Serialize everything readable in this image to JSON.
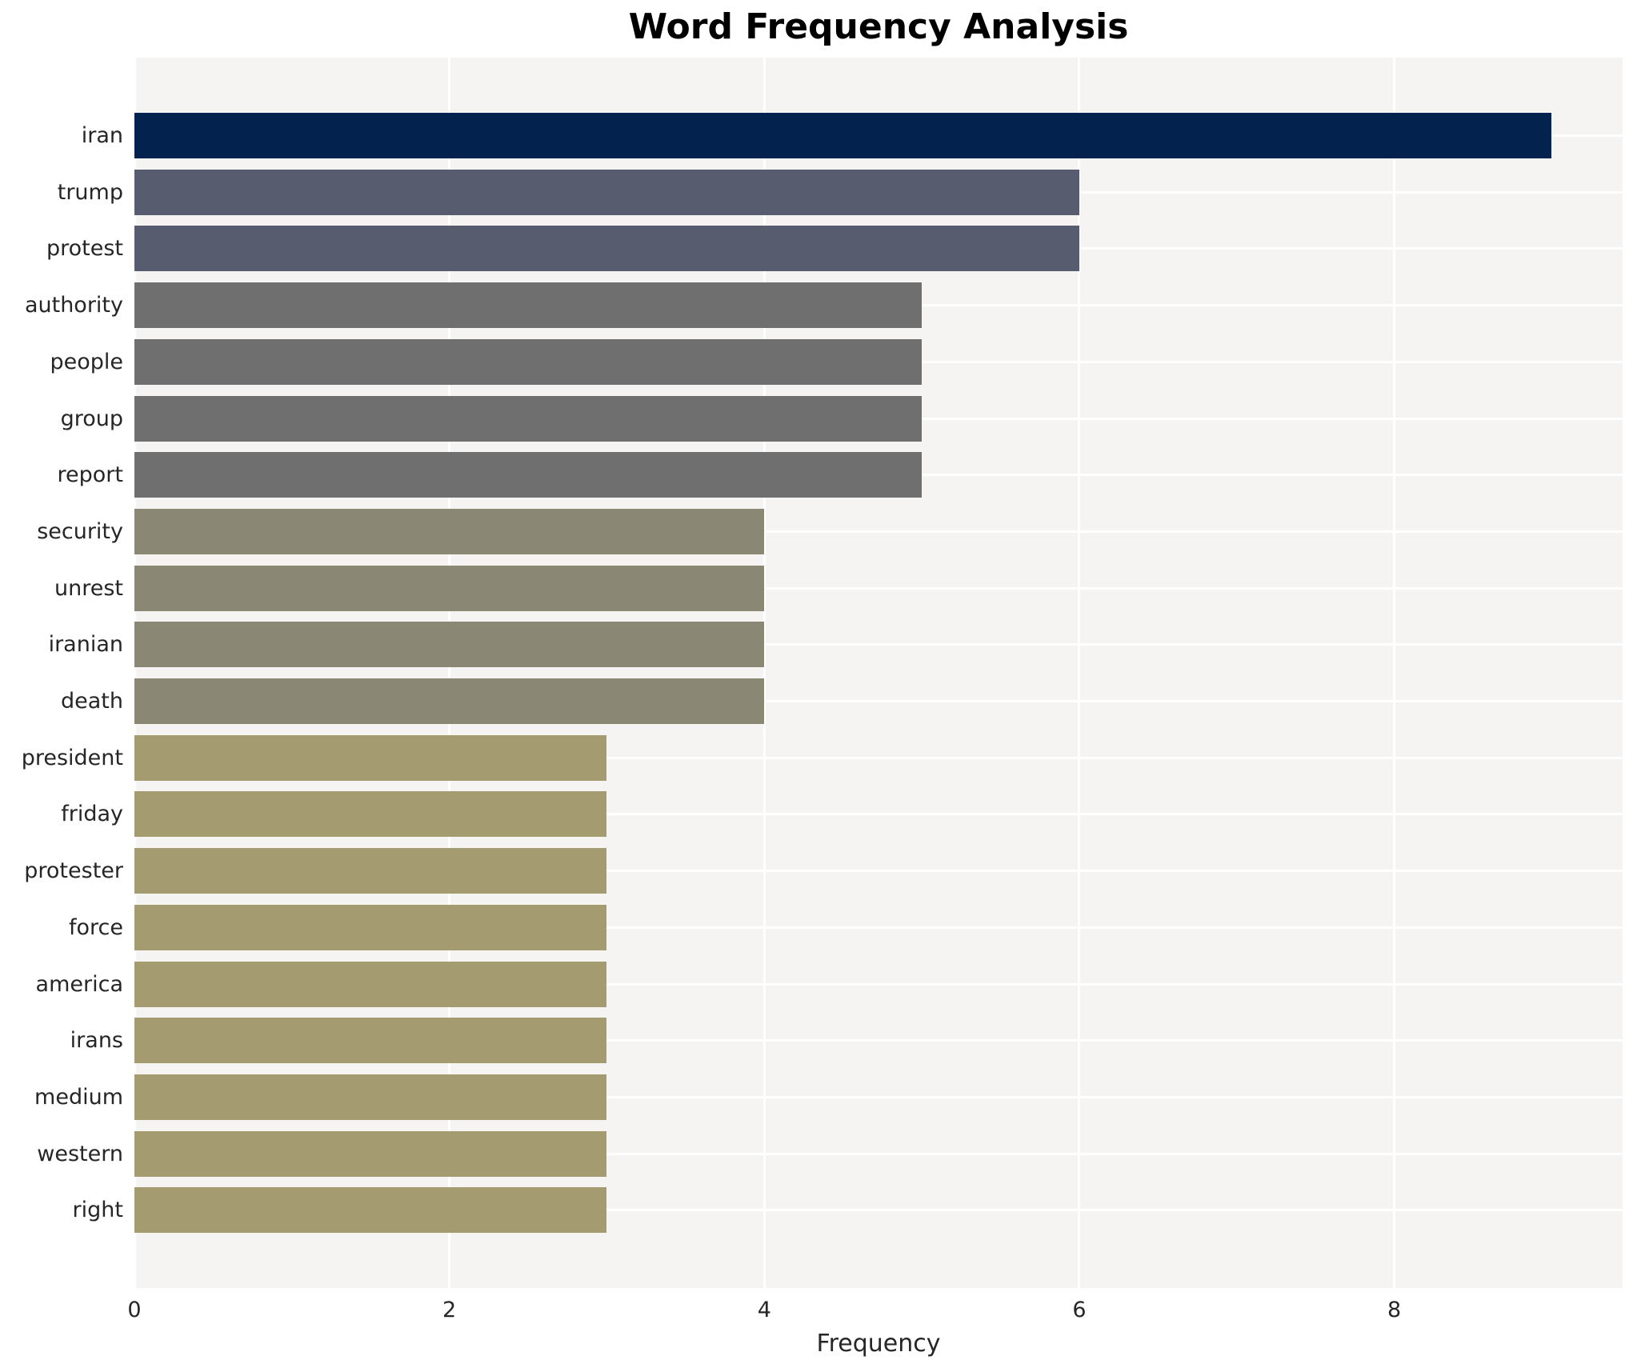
{
  "chart_data": {
    "type": "bar",
    "orientation": "horizontal",
    "title": "Word Frequency Analysis",
    "xlabel": "Frequency",
    "ylabel": "",
    "categories": [
      "iran",
      "trump",
      "protest",
      "authority",
      "people",
      "group",
      "report",
      "security",
      "unrest",
      "iranian",
      "death",
      "president",
      "friday",
      "protester",
      "force",
      "america",
      "irans",
      "medium",
      "western",
      "right"
    ],
    "values": [
      9,
      6,
      6,
      5,
      5,
      5,
      5,
      4,
      4,
      4,
      4,
      3,
      3,
      3,
      3,
      3,
      3,
      3,
      3,
      3
    ],
    "bar_colors": [
      "#03234e",
      "#575d6e",
      "#575d6e",
      "#706f70",
      "#706f70",
      "#706f70",
      "#706f70",
      "#8a8775",
      "#8a8775",
      "#8a8775",
      "#8a8775",
      "#a49b70",
      "#a49b70",
      "#a49b70",
      "#a49b70",
      "#a49b70",
      "#a49b70",
      "#a49b70",
      "#a49b70",
      "#a49b70"
    ],
    "xticks": [
      0,
      2,
      4,
      6,
      8
    ],
    "xlim": [
      0,
      9.45
    ],
    "grid": true,
    "legend_position": "none"
  },
  "style": {
    "plot_background": "#f5f4f2",
    "grid_color": "#ffffff",
    "page_background": "#ffffff",
    "title_color": "#000000",
    "axis_text_color": "#262626"
  }
}
